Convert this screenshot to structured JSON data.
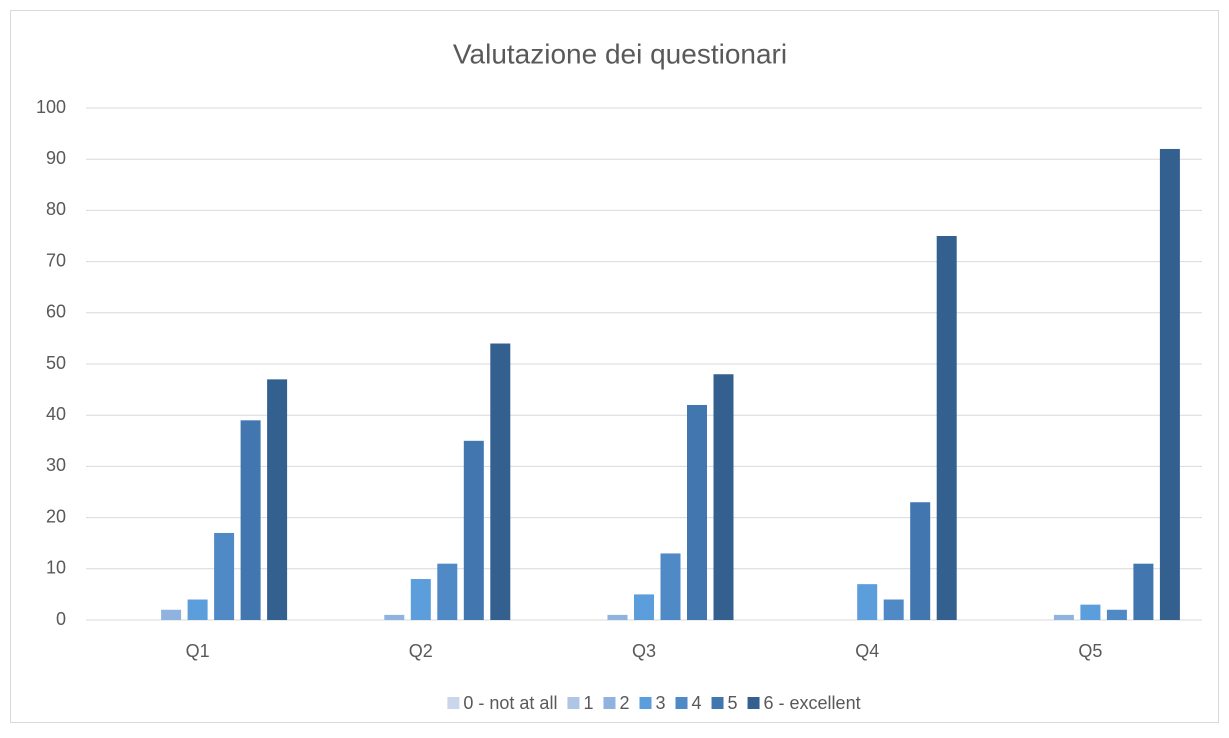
{
  "chart_data": {
    "type": "bar",
    "title": "Valutazione dei questionari",
    "categories": [
      "Q1",
      "Q2",
      "Q3",
      "Q4",
      "Q5"
    ],
    "series": [
      {
        "name": "0 - not at all",
        "color": "#c9d6ec",
        "values": [
          0,
          0,
          0,
          0,
          0
        ]
      },
      {
        "name": "1",
        "color": "#aec5e6",
        "values": [
          0,
          0,
          0,
          0,
          0
        ]
      },
      {
        "name": "2",
        "color": "#8fb2de",
        "values": [
          2,
          1,
          1,
          0,
          1
        ]
      },
      {
        "name": "3",
        "color": "#5c9ddb",
        "values": [
          4,
          8,
          5,
          7,
          3
        ]
      },
      {
        "name": "4",
        "color": "#4f8ac6",
        "values": [
          17,
          11,
          13,
          4,
          2
        ]
      },
      {
        "name": "5",
        "color": "#4176ae",
        "values": [
          39,
          35,
          42,
          23,
          11
        ]
      },
      {
        "name": "6 - excellent",
        "color": "#34608f",
        "values": [
          47,
          54,
          48,
          75,
          92
        ]
      }
    ],
    "ylim": [
      0,
      100
    ],
    "yticks": [
      0,
      10,
      20,
      30,
      40,
      50,
      60,
      70,
      80,
      90,
      100
    ],
    "grid": true,
    "legend": "bottom"
  }
}
